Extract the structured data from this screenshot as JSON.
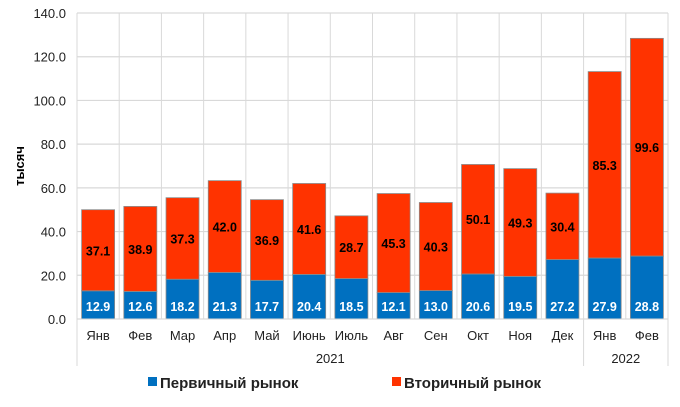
{
  "chart_data": {
    "type": "bar",
    "stacked": true,
    "title": "",
    "ylabel": "тысяч",
    "xlabel": "",
    "ylim": [
      0,
      140
    ],
    "yticks": [
      "0.0",
      "20.0",
      "40.0",
      "60.0",
      "80.0",
      "100.0",
      "120.0",
      "140.0"
    ],
    "grid": true,
    "legend_position": "bottom",
    "categories": [
      "Янв",
      "Фев",
      "Мар",
      "Апр",
      "Май",
      "Июнь",
      "Июль",
      "Авг",
      "Сен",
      "Окт",
      "Ноя",
      "Дек",
      "Янв",
      "Фев"
    ],
    "groups": [
      {
        "label": "2021",
        "count": 12
      },
      {
        "label": "2022",
        "count": 2
      }
    ],
    "series": [
      {
        "name": "Первичный рынок",
        "color": "#0070C0",
        "label_color": "#ffffff",
        "values": [
          12.9,
          12.6,
          18.2,
          21.3,
          17.7,
          20.4,
          18.5,
          12.1,
          13.0,
          20.6,
          19.5,
          27.2,
          27.9,
          28.8
        ]
      },
      {
        "name": "Вторичный рынок",
        "color": "#FF3300",
        "label_color": "#000000",
        "values": [
          37.1,
          38.9,
          37.3,
          42.0,
          36.9,
          41.6,
          28.7,
          45.3,
          40.3,
          50.1,
          49.3,
          30.4,
          85.3,
          99.6
        ]
      }
    ]
  }
}
